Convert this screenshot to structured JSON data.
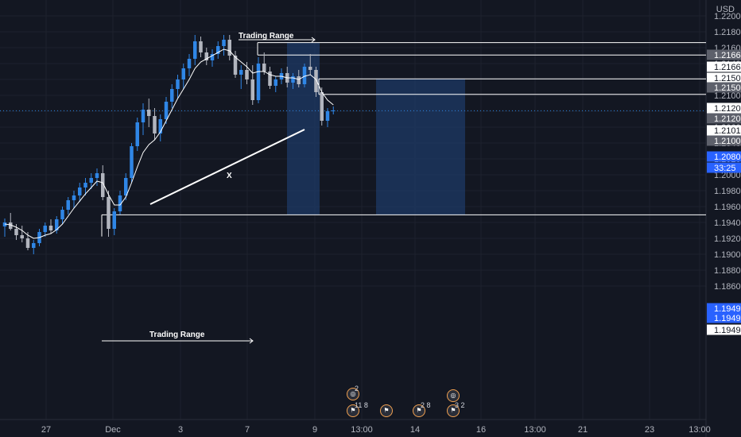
{
  "currency": "USD",
  "colors": {
    "background": "#131722",
    "grid": "#1e222d",
    "bull": "#2f86e6",
    "bear": "#b2b5be",
    "line": "#ffffff",
    "zone": "#1e3a66",
    "label_gray": "#5d606b",
    "label_blue": "#2962ff",
    "label_white": "#ffffff"
  },
  "chart_data": {
    "type": "candlestick",
    "symbol_quote": "USD",
    "xlabel": "",
    "ylabel": "",
    "ylim": [
      1.1855,
      1.2205
    ],
    "y_ticks": [
      "1.22000",
      "1.21800",
      "1.21600",
      "1.21400",
      "1.21200",
      "1.21000",
      "1.20800",
      "1.20600",
      "1.20400",
      "1.20200",
      "1.20000",
      "1.19800",
      "1.19600",
      "1.19400",
      "1.19200",
      "1.19000",
      "1.18800",
      "1.18600"
    ],
    "x_ticks": [
      "27",
      "Dec",
      "3",
      "7",
      "9",
      "13:00",
      "14",
      "16",
      "13:00",
      "21",
      "23",
      "13:00"
    ],
    "candles_ohlc": [
      [
        1.1935,
        1.1945,
        1.1922,
        1.194
      ],
      [
        1.194,
        1.1952,
        1.193,
        1.1932
      ],
      [
        1.1932,
        1.1938,
        1.1918,
        1.1924
      ],
      [
        1.1924,
        1.1936,
        1.1915,
        1.192
      ],
      [
        1.192,
        1.1928,
        1.1905,
        1.1908
      ],
      [
        1.1908,
        1.1918,
        1.19,
        1.1914
      ],
      [
        1.1914,
        1.1932,
        1.191,
        1.1928
      ],
      [
        1.1928,
        1.194,
        1.1922,
        1.1936
      ],
      [
        1.1936,
        1.1944,
        1.1926,
        1.193
      ],
      [
        1.193,
        1.1948,
        1.1926,
        1.1944
      ],
      [
        1.1944,
        1.196,
        1.1938,
        1.1956
      ],
      [
        1.1956,
        1.1972,
        1.195,
        1.1968
      ],
      [
        1.1968,
        1.198,
        1.1958,
        1.1974
      ],
      [
        1.1974,
        1.199,
        1.1966,
        1.1984
      ],
      [
        1.1984,
        1.1996,
        1.1974,
        1.199
      ],
      [
        1.199,
        1.2002,
        1.1982,
        1.1996
      ],
      [
        1.1996,
        1.2008,
        1.1986,
        1.2002
      ],
      [
        1.2002,
        1.2012,
        1.1968,
        1.1972
      ],
      [
        1.1972,
        1.198,
        1.1922,
        1.1932
      ],
      [
        1.1932,
        1.1958,
        1.1924,
        1.1954
      ],
      [
        1.1954,
        1.198,
        1.195,
        1.1974
      ],
      [
        1.1974,
        1.2002,
        1.1968,
        1.1996
      ],
      [
        1.1996,
        1.204,
        1.199,
        1.2036
      ],
      [
        1.2036,
        1.2072,
        1.203,
        1.2066
      ],
      [
        1.2066,
        1.209,
        1.205,
        1.2082
      ],
      [
        1.2082,
        1.2096,
        1.206,
        1.2074
      ],
      [
        1.2074,
        1.2084,
        1.2044,
        1.2052
      ],
      [
        1.2052,
        1.2076,
        1.2042,
        1.207
      ],
      [
        1.207,
        1.2098,
        1.2064,
        1.2092
      ],
      [
        1.2092,
        1.2114,
        1.2084,
        1.2108
      ],
      [
        1.2108,
        1.2126,
        1.2096,
        1.212
      ],
      [
        1.212,
        1.214,
        1.2108,
        1.2134
      ],
      [
        1.2134,
        1.2152,
        1.2124,
        1.2146
      ],
      [
        1.2146,
        1.2176,
        1.2138,
        1.2168
      ],
      [
        1.2168,
        1.2174,
        1.2148,
        1.2154
      ],
      [
        1.2154,
        1.216,
        1.2138,
        1.2144
      ],
      [
        1.2144,
        1.2158,
        1.2136,
        1.2152
      ],
      [
        1.2152,
        1.2168,
        1.2146,
        1.2162
      ],
      [
        1.2162,
        1.2176,
        1.215,
        1.217
      ],
      [
        1.217,
        1.2176,
        1.2144,
        1.215
      ],
      [
        1.215,
        1.2156,
        1.2122,
        1.2126
      ],
      [
        1.2126,
        1.2138,
        1.2108,
        1.2132
      ],
      [
        1.2132,
        1.2142,
        1.2114,
        1.212
      ],
      [
        1.212,
        1.2138,
        1.2088,
        1.2094
      ],
      [
        1.2094,
        1.2148,
        1.209,
        1.214
      ],
      [
        1.214,
        1.2154,
        1.2126,
        1.213
      ],
      [
        1.213,
        1.2136,
        1.2108,
        1.2112
      ],
      [
        1.2112,
        1.2124,
        1.2104,
        1.212
      ],
      [
        1.212,
        1.2134,
        1.2114,
        1.2128
      ],
      [
        1.2128,
        1.2136,
        1.211,
        1.2116
      ],
      [
        1.2116,
        1.2128,
        1.2108,
        1.2124
      ],
      [
        1.2124,
        1.2132,
        1.211,
        1.2114
      ],
      [
        1.2114,
        1.214,
        1.211,
        1.2136
      ],
      [
        1.2136,
        1.2152,
        1.2126,
        1.2132
      ],
      [
        1.2132,
        1.2136,
        1.2098,
        1.2104
      ],
      [
        1.2104,
        1.211,
        1.2062,
        1.2068
      ],
      [
        1.2068,
        1.2084,
        1.206,
        1.208
      ],
      [
        1.208,
        1.2086,
        1.2076,
        1.2081
      ]
    ],
    "moving_average": [
      1.1938,
      1.1937,
      1.1934,
      1.193,
      1.1924,
      1.192,
      1.1921,
      1.1924,
      1.1926,
      1.1931,
      1.1938,
      1.1948,
      1.1958,
      1.1967,
      1.1976,
      1.1984,
      1.1992,
      1.199,
      1.1975,
      1.1962,
      1.1962,
      1.1972,
      1.199,
      1.201,
      1.2028,
      1.2038,
      1.2044,
      1.2054,
      1.2068,
      1.2082,
      1.2096,
      1.2108,
      1.212,
      1.2134,
      1.2142,
      1.2146,
      1.215,
      1.2154,
      1.2158,
      1.2156,
      1.2148,
      1.2142,
      1.2136,
      1.2128,
      1.213,
      1.213,
      1.2126,
      1.2124,
      1.2124,
      1.2122,
      1.2122,
      1.212,
      1.2124,
      1.2126,
      1.212,
      1.2104,
      1.2094,
      1.2088
    ],
    "annotations": [
      {
        "type": "arrow",
        "label": "Trading Range"
      },
      {
        "type": "arrow",
        "label": "Trading Range"
      },
      {
        "type": "trendline",
        "label": "X"
      }
    ],
    "horizontal_lines": [
      1.21664,
      1.21508,
      1.21207,
      1.21012,
      1.19496
    ],
    "price_labels": [
      {
        "value": "1.21664",
        "style": "gray"
      },
      {
        "value": "1.21664",
        "style": "white"
      },
      {
        "value": "1.21508",
        "style": "white"
      },
      {
        "value": "1.21508",
        "style": "gray"
      },
      {
        "value": "1.21207",
        "style": "white"
      },
      {
        "value": "1.21206",
        "style": "gray"
      },
      {
        "value": "1.21012",
        "style": "white"
      },
      {
        "value": "1.21009",
        "style": "gray"
      },
      {
        "value": "1.20806",
        "style": "blue"
      },
      {
        "value": "33:25",
        "style": "blue"
      },
      {
        "value": "1.19496",
        "style": "blue"
      },
      {
        "value": "1.19495",
        "style": "blue"
      },
      {
        "value": "1.19494",
        "style": "white"
      }
    ],
    "zones": [
      {
        "y_top": 1.21664,
        "y_bottom": 1.19496
      },
      {
        "y_top": 1.21207,
        "y_bottom": 1.19496
      }
    ],
    "events": [
      {
        "icon": "calendar-event-icon",
        "count": "2"
      },
      {
        "icon": "us-flag-icon",
        "count": "11 8"
      },
      {
        "icon": "us-flag-icon",
        "count": ""
      },
      {
        "icon": "us-flag-icon",
        "count": "2 8"
      },
      {
        "icon": "us-flag-icon",
        "count": "3 2"
      }
    ]
  }
}
